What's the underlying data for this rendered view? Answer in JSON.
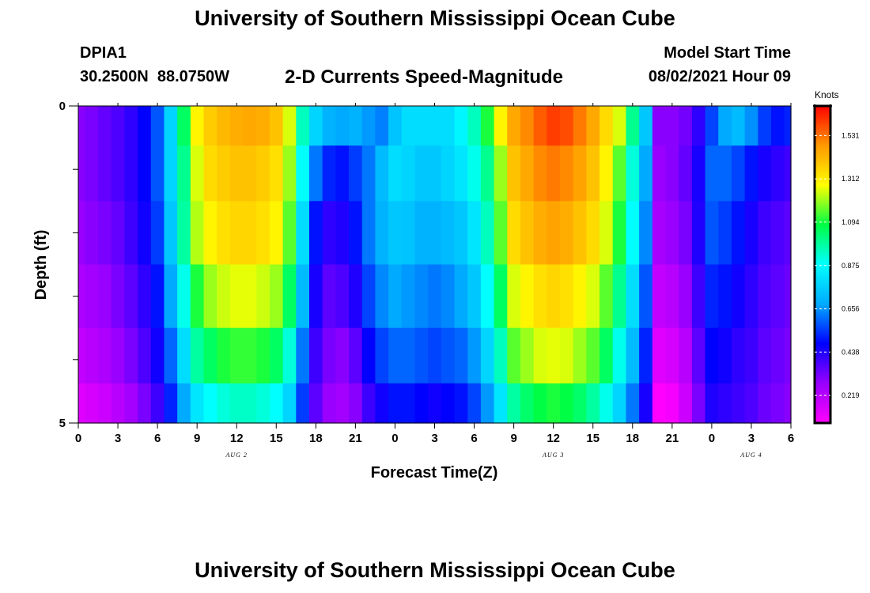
{
  "header": {
    "title": "University of Southern Mississippi Ocean Cube",
    "station_id": "DPIA1",
    "station_coords": "30.2500N  88.0750W",
    "chart_title": "2-D Currents Speed-Magnitude",
    "model_label": "Model Start Time",
    "model_time": "08/02/2021 Hour 09"
  },
  "footer": {
    "title": "University of Southern Mississippi Ocean Cube"
  },
  "chart_data": {
    "type": "heatmap",
    "title": "2-D Currents Speed-Magnitude",
    "xlabel": "Forecast Time(Z)",
    "ylabel": "Depth (ft)",
    "units": "Knots",
    "x_ticks": [
      "0",
      "3",
      "6",
      "9",
      "12",
      "15",
      "18",
      "21",
      "0",
      "3",
      "6",
      "9",
      "12",
      "15",
      "18",
      "21",
      "0",
      "3",
      "6"
    ],
    "x_hours": [
      0,
      3,
      6,
      9,
      12,
      15,
      18,
      21,
      24,
      27,
      30,
      33,
      36,
      39,
      42,
      45,
      48,
      51,
      54
    ],
    "date_labels": [
      {
        "label": "AUG 2",
        "hour": 12
      },
      {
        "label": "AUG 3",
        "hour": 36
      },
      {
        "label": "AUG 4",
        "hour": 51
      }
    ],
    "y_ticks": [
      "0",
      "5"
    ],
    "ylim": [
      0,
      5
    ],
    "xlim": [
      0,
      54
    ],
    "colorbar": {
      "ticks": [
        "1.531",
        "1.312",
        "1.094",
        "0.875",
        "0.656",
        "0.438",
        "0.219"
      ],
      "tick_values": [
        1.531,
        1.312,
        1.094,
        0.875,
        0.656,
        0.438,
        0.219
      ],
      "range": [
        0.08,
        1.68
      ],
      "colors": [
        "#ff00ff",
        "#9900ff",
        "#0000ff",
        "#00aaff",
        "#00ffff",
        "#00ff44",
        "#ffff00",
        "#ff9900",
        "#ff0000"
      ]
    },
    "row_depths_ft": [
      0.25,
      1.0,
      2.0,
      3.0,
      4.0,
      4.75
    ],
    "hours": [
      0,
      1,
      2,
      3,
      4,
      5,
      6,
      7,
      8,
      9,
      10,
      11,
      12,
      13,
      14,
      15,
      16,
      17,
      18,
      19,
      20,
      21,
      22,
      23,
      24,
      25,
      26,
      27,
      28,
      29,
      30,
      31,
      32,
      33,
      34,
      35,
      36,
      37,
      38,
      39,
      40,
      41,
      42,
      43,
      44,
      45,
      46,
      47,
      48,
      49,
      50,
      51,
      52,
      53,
      54
    ],
    "speed_knots": [
      [
        0.3,
        0.32,
        0.35,
        0.38,
        0.42,
        0.48,
        0.58,
        0.78,
        1.05,
        1.3,
        1.38,
        1.42,
        1.44,
        1.45,
        1.44,
        1.4,
        1.25,
        0.95,
        0.78,
        0.7,
        0.68,
        0.7,
        0.66,
        0.63,
        0.74,
        0.8,
        0.8,
        0.8,
        0.8,
        0.86,
        0.95,
        1.1,
        1.3,
        1.45,
        1.5,
        1.56,
        1.6,
        1.58,
        1.52,
        1.45,
        1.35,
        1.25,
        1.0,
        0.75,
        0.3,
        0.3,
        0.33,
        0.42,
        0.56,
        0.68,
        0.72,
        0.65,
        0.55,
        0.5,
        0.52
      ],
      [
        0.3,
        0.32,
        0.35,
        0.38,
        0.42,
        0.48,
        0.58,
        0.78,
        1.0,
        1.25,
        1.35,
        1.38,
        1.4,
        1.4,
        1.38,
        1.34,
        1.2,
        0.88,
        0.62,
        0.52,
        0.5,
        0.55,
        0.62,
        0.72,
        0.8,
        0.78,
        0.75,
        0.75,
        0.78,
        0.82,
        0.9,
        1.0,
        1.2,
        1.4,
        1.45,
        1.5,
        1.52,
        1.5,
        1.46,
        1.4,
        1.3,
        1.15,
        0.92,
        0.68,
        0.28,
        0.3,
        0.35,
        0.45,
        0.6,
        0.6,
        0.56,
        0.5,
        0.45,
        0.42,
        0.4
      ],
      [
        0.28,
        0.3,
        0.32,
        0.35,
        0.4,
        0.46,
        0.55,
        0.75,
        0.98,
        1.22,
        1.3,
        1.34,
        1.36,
        1.36,
        1.34,
        1.3,
        1.15,
        0.8,
        0.5,
        0.42,
        0.44,
        0.5,
        0.62,
        0.7,
        0.75,
        0.74,
        0.7,
        0.7,
        0.72,
        0.75,
        0.82,
        0.95,
        1.15,
        1.35,
        1.4,
        1.44,
        1.46,
        1.44,
        1.4,
        1.35,
        1.25,
        1.1,
        0.88,
        0.64,
        0.25,
        0.28,
        0.32,
        0.44,
        0.58,
        0.55,
        0.5,
        0.45,
        0.4,
        0.38,
        0.36
      ],
      [
        0.24,
        0.26,
        0.28,
        0.32,
        0.36,
        0.42,
        0.5,
        0.68,
        0.9,
        1.1,
        1.2,
        1.24,
        1.26,
        1.26,
        1.24,
        1.2,
        1.05,
        0.72,
        0.45,
        0.36,
        0.38,
        0.44,
        0.56,
        0.64,
        0.68,
        0.66,
        0.64,
        0.62,
        0.64,
        0.68,
        0.75,
        0.88,
        1.05,
        1.25,
        1.3,
        1.34,
        1.36,
        1.34,
        1.3,
        1.25,
        1.15,
        1.0,
        0.8,
        0.58,
        0.2,
        0.22,
        0.28,
        0.4,
        0.52,
        0.5,
        0.46,
        0.42,
        0.38,
        0.36,
        0.34
      ],
      [
        0.2,
        0.22,
        0.24,
        0.28,
        0.32,
        0.38,
        0.46,
        0.6,
        0.8,
        0.98,
        1.05,
        1.1,
        1.12,
        1.12,
        1.1,
        1.05,
        0.92,
        0.62,
        0.4,
        0.32,
        0.3,
        0.36,
        0.48,
        0.56,
        0.6,
        0.6,
        0.58,
        0.56,
        0.58,
        0.6,
        0.66,
        0.78,
        0.95,
        1.15,
        1.2,
        1.25,
        1.26,
        1.25,
        1.2,
        1.15,
        1.05,
        0.9,
        0.72,
        0.52,
        0.14,
        0.16,
        0.22,
        0.36,
        0.48,
        0.46,
        0.42,
        0.4,
        0.36,
        0.34,
        0.32
      ],
      [
        0.14,
        0.16,
        0.18,
        0.22,
        0.26,
        0.32,
        0.4,
        0.52,
        0.68,
        0.82,
        0.88,
        0.92,
        0.94,
        0.94,
        0.92,
        0.88,
        0.78,
        0.55,
        0.36,
        0.28,
        0.26,
        0.3,
        0.4,
        0.46,
        0.5,
        0.5,
        0.48,
        0.46,
        0.48,
        0.5,
        0.56,
        0.66,
        0.82,
        0.98,
        1.04,
        1.08,
        1.1,
        1.08,
        1.04,
        0.98,
        0.9,
        0.78,
        0.62,
        0.45,
        0.08,
        0.1,
        0.18,
        0.32,
        0.44,
        0.42,
        0.4,
        0.38,
        0.34,
        0.32,
        0.3
      ]
    ]
  }
}
